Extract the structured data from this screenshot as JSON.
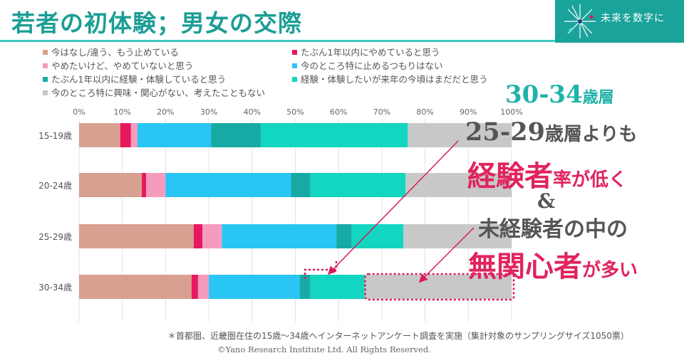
{
  "header": {
    "title": "若者の初体験；男女の交際",
    "brand": "未来を数字に"
  },
  "legend": [
    {
      "label": "今はなし/違う、もう止めている",
      "color": "#d8a090"
    },
    {
      "label": "たぶん1年以内にやめていると思う",
      "color": "#e6195f"
    },
    {
      "label": "やめたいけど、やめていないと思う",
      "color": "#f59bbe"
    },
    {
      "label": "今のところ特に止めるつもりはない",
      "color": "#29c6f4"
    },
    {
      "label": "たぶん1年以内に経験・体験していると思う",
      "color": "#17aaa5"
    },
    {
      "label": "経験・体験したいが来年の今頃はまだだと思う",
      "color": "#12d6c0"
    },
    {
      "label": "今のところ特に興味・関心がない、考えたこともない",
      "color": "#c8c8c8"
    }
  ],
  "chart_data": {
    "type": "bar",
    "orientation": "horizontal",
    "stacked": true,
    "categories": [
      "15-19歳",
      "20-24歳",
      "25-29歳",
      "30-34歳"
    ],
    "x_ticks": [
      "0%",
      "10%",
      "20%",
      "30%",
      "40%",
      "50%",
      "60%",
      "70%",
      "80%",
      "90%",
      "100%"
    ],
    "xlim": [
      0,
      100
    ],
    "series": [
      {
        "name": "今はなし/違う、もう止めている",
        "values": [
          9.5,
          14.5,
          26.5,
          26.0
        ]
      },
      {
        "name": "たぶん1年以内にやめていると思う",
        "values": [
          2.5,
          1.0,
          2.0,
          1.5
        ]
      },
      {
        "name": "やめたいけど、やめていないと思う",
        "values": [
          1.5,
          4.5,
          4.5,
          2.5
        ]
      },
      {
        "name": "今のところ特に止めるつもりはない",
        "values": [
          17.0,
          29.0,
          26.5,
          21.0
        ]
      },
      {
        "name": "たぶん1年以内に経験・体験していると思う",
        "values": [
          11.5,
          4.5,
          3.5,
          2.5
        ]
      },
      {
        "name": "経験・体験したいが来年の今頃はまだだと思う",
        "values": [
          34.0,
          22.0,
          12.0,
          12.5
        ]
      },
      {
        "name": "今のところ特に興味・関心がない、考えたこともない",
        "values": [
          24.0,
          24.5,
          25.0,
          34.0
        ]
      }
    ],
    "grid": true
  },
  "callouts": {
    "age_group": "30-34",
    "age_group_suffix": "歳層",
    "line1_main": "25-29",
    "line1_suffix": "歳層よりも",
    "line2_main": "経験者",
    "line2_suffix": "率が低く",
    "ampersand": "&",
    "line3": "未経験者の中の",
    "line4_main": "無関心者",
    "line4_suffix": "が多い"
  },
  "footnote": "＊首都圏、近畿圏在住の15歳～34歳へインターネットアンケート調査を実施（集計対象のサンプリングサイズ1050票）",
  "copyright": "©Yano Research Institute Ltd. All Rights Reserved."
}
